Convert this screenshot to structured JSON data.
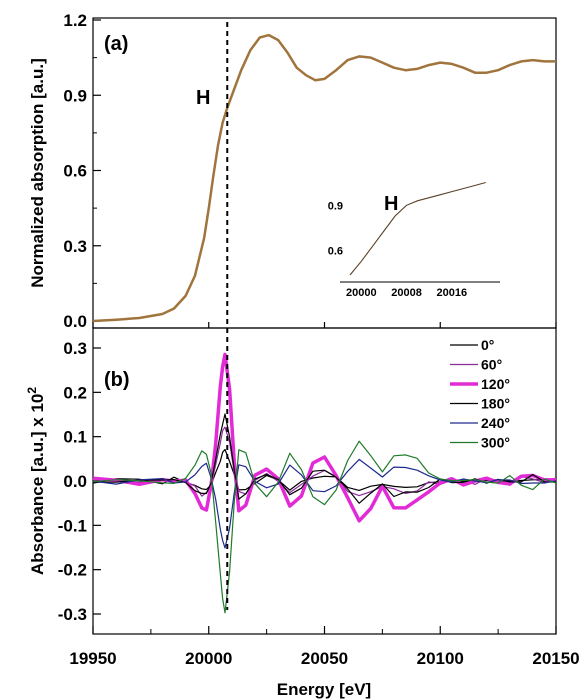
{
  "chart_data": [
    {
      "type": "line",
      "panel_label": "(a)",
      "ylabel": "Normalized absorption [a.u.]",
      "xlim": [
        19950,
        20150
      ],
      "ylim": [
        0,
        1.2
      ],
      "yticks": [
        "0.0",
        "0.3",
        "0.6",
        "0.9",
        "1.2"
      ],
      "annotation": "H",
      "marker_energy": 20008,
      "colors": {
        "curve": "#a0743c",
        "marker": "#000000"
      },
      "series": [
        {
          "x": [
            19950,
            19960,
            19970,
            19980,
            19985,
            19990,
            19994,
            19998,
            20000,
            20002,
            20004,
            20006,
            20008,
            20010,
            20014,
            20018,
            20022,
            20026,
            20030,
            20034,
            20038,
            20042,
            20046,
            20050,
            20055,
            20060,
            20065,
            20070,
            20075,
            20080,
            20085,
            20090,
            20095,
            20100,
            20105,
            20110,
            20115,
            20120,
            20125,
            20130,
            20135,
            20140,
            20145,
            20150
          ],
          "values": [
            0.0,
            0.005,
            0.012,
            0.028,
            0.05,
            0.1,
            0.18,
            0.33,
            0.45,
            0.58,
            0.7,
            0.79,
            0.85,
            0.9,
            1.0,
            1.08,
            1.13,
            1.14,
            1.12,
            1.07,
            1.01,
            0.98,
            0.96,
            0.965,
            1.0,
            1.04,
            1.055,
            1.05,
            1.03,
            1.01,
            1.0,
            1.005,
            1.02,
            1.03,
            1.025,
            1.01,
            0.99,
            0.99,
            1.0,
            1.02,
            1.035,
            1.04,
            1.035,
            1.035
          ]
        }
      ],
      "inset": {
        "xticks": [
          "20000",
          "20008",
          "20016"
        ],
        "xlim": [
          19998,
          20024
        ],
        "yticks": [
          "0.6",
          "0.9"
        ],
        "ylim": [
          0.42,
          1.08
        ],
        "annotation": "H",
        "x": [
          19998,
          20000,
          20002,
          20004,
          20006,
          20008,
          20010,
          20012,
          20014,
          20016,
          20018,
          20020,
          20022
        ],
        "values": [
          0.44,
          0.53,
          0.63,
          0.73,
          0.83,
          0.9,
          0.93,
          0.95,
          0.97,
          0.99,
          1.01,
          1.03,
          1.05
        ]
      }
    },
    {
      "type": "line",
      "panel_label": "(b)",
      "xlabel": "Energy [eV]",
      "ylabel": "Absorbance [a.u.] x 10",
      "ylabel_sup": "2",
      "xlim": [
        19950,
        20150
      ],
      "ylim": [
        -0.35,
        0.32
      ],
      "xticks": [
        "19950",
        "20000",
        "20050",
        "20100",
        "20150"
      ],
      "yticks": [
        "-0.3",
        "-0.2",
        "-0.1",
        "0.0",
        "0.1",
        "0.2",
        "0.3"
      ],
      "x": [
        19950,
        19960,
        19970,
        19980,
        19985,
        19990,
        19994,
        19997,
        19999,
        20001,
        20003,
        20005,
        20006,
        20007,
        20009,
        20011,
        20013,
        20016,
        20020,
        20025,
        20030,
        20035,
        20040,
        20045,
        20050,
        20055,
        20060,
        20065,
        20070,
        20075,
        20080,
        20085,
        20090,
        20095,
        20100,
        20105,
        20110,
        20115,
        20120,
        20125,
        20130,
        20135,
        20140,
        20145,
        20150
      ],
      "profile": [
        0,
        0,
        0,
        0.01,
        0.02,
        -0.02,
        -0.12,
        -0.22,
        -0.22,
        -0.05,
        0.3,
        0.72,
        0.92,
        1.0,
        0.7,
        0.15,
        -0.25,
        -0.2,
        0.03,
        0.12,
        0.0,
        -0.2,
        -0.1,
        0.12,
        0.2,
        0.05,
        -0.15,
        -0.3,
        -0.22,
        -0.05,
        -0.2,
        -0.22,
        -0.15,
        -0.08,
        -0.02,
        0.02,
        -0.03,
        0.0,
        0.02,
        -0.01,
        -0.02,
        0.03,
        0.05,
        0.01,
        0.0
      ],
      "series": [
        {
          "name": "0°",
          "color": "#000000",
          "width": 1.2,
          "scale": 0.07
        },
        {
          "name": "60°",
          "color": "#8a2b9a",
          "width": 1.2,
          "scale": 0.12
        },
        {
          "name": "120°",
          "color": "#e22bd6",
          "width": 3.5,
          "scale": 0.285
        },
        {
          "name": "180°",
          "color": "#000000",
          "width": 1.2,
          "scale": 0.145
        },
        {
          "name": "240°",
          "color": "#1d2a8f",
          "width": 1.2,
          "scale": -0.15
        },
        {
          "name": "300°",
          "color": "#1f7a2a",
          "width": 1.2,
          "scale": -0.29
        }
      ],
      "colors": {
        "marker": "#000000"
      }
    }
  ]
}
